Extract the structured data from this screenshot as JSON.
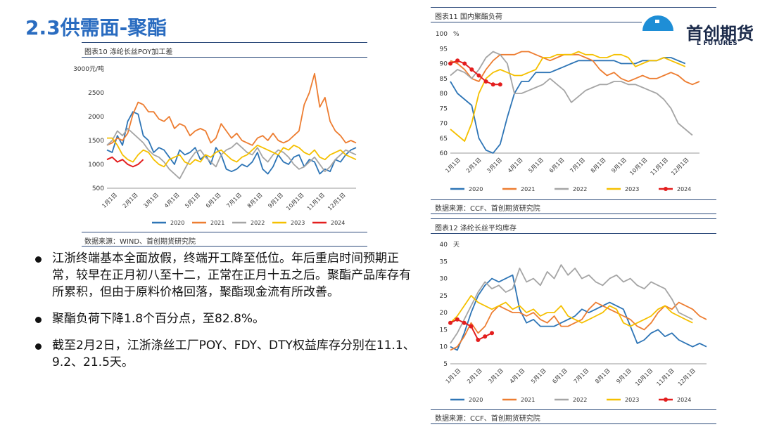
{
  "page_title": "2.3供需面-聚酯",
  "logo": {
    "text": "首创期货",
    "sub": "L FUTURES"
  },
  "bullets": [
    "江浙终端基本全面放假，终端开工降至低位。年后重启时间预期正常，较早在正月初八至十二，正常在正月十五之后。聚酯产品库存有所累积，但由于原料价格回落，聚酯现金流有所改善。",
    "聚酯负荷下降1.8个百分点，至82.8%。",
    "截至2月2日，江浙涤丝工厂POY、FDY、DTY权益库存分别在11.1、9.2、21.5天。"
  ],
  "series_colors": {
    "2020": "#2e75b6",
    "2021": "#ed7d31",
    "2022": "#a5a5a5",
    "2023": "#f5c000",
    "2024": "#e31e1e"
  },
  "chart_data": [
    {
      "id": "chart10",
      "type": "line",
      "caption": "图表10 涤纶长丝POY加工差",
      "unit": "元/吨",
      "source": "数据来源：WIND、首创期货研究院",
      "x_ticks": [
        "1月1日",
        "2月1日",
        "3月1日",
        "4月1日",
        "5月1日",
        "6月1日",
        "7月1日",
        "8月1日",
        "9月1日",
        "10月1日",
        "11月1日",
        "12月1日"
      ],
      "y_ticks": [
        500,
        1000,
        1500,
        2000,
        2500,
        3000
      ],
      "ylim": [
        500,
        3000
      ],
      "series": [
        {
          "name": "2020",
          "values": [
            1300,
            1250,
            1600,
            1400,
            1900,
            2100,
            2050,
            1600,
            1500,
            1250,
            1350,
            1300,
            1150,
            1000,
            1300,
            1200,
            1250,
            1350,
            1100,
            1200,
            1000,
            1350,
            1200,
            900,
            850,
            900,
            1000,
            950,
            1050,
            1250,
            900,
            800,
            950,
            1200,
            1050,
            1000,
            1150,
            1200,
            950,
            1100,
            1050,
            800,
            900,
            850,
            1100,
            1050,
            1200,
            1300,
            1350
          ]
        },
        {
          "name": "2021",
          "values": [
            1400,
            1450,
            1550,
            1500,
            1650,
            2050,
            2300,
            2250,
            2100,
            2100,
            1950,
            1900,
            2000,
            1750,
            1850,
            1800,
            1600,
            1700,
            1750,
            1700,
            1450,
            1550,
            1850,
            1700,
            1550,
            1650,
            1500,
            1450,
            1400,
            1550,
            1600,
            1500,
            1650,
            1500,
            1450,
            1500,
            1600,
            1700,
            2250,
            2500,
            2900,
            2200,
            2400,
            1900,
            1700,
            1600,
            1450,
            1500,
            1450
          ]
        },
        {
          "name": "2022",
          "values": [
            1400,
            1500,
            1700,
            1600,
            1750,
            1650,
            1550,
            1450,
            1300,
            1200,
            1150,
            1050,
            900,
            800,
            700,
            900,
            1100,
            1250,
            1300,
            1150,
            1050,
            950,
            1200,
            1300,
            1350,
            1450,
            1350,
            1250,
            1200,
            1350,
            1150,
            1050,
            1200,
            1300,
            1250,
            1150,
            1000,
            900,
            950,
            1050,
            1150,
            1000,
            850,
            950,
            1100,
            1200,
            1300,
            1250,
            1200
          ]
        },
        {
          "name": "2023",
          "values": [
            1550,
            1550,
            1400,
            1200,
            1100,
            1050,
            1200,
            1300,
            1250,
            1100,
            1000,
            950,
            1100,
            1150,
            1200,
            1050,
            1000,
            1100,
            1050,
            1200,
            1150,
            1250,
            1300,
            1200,
            1100,
            1050,
            1150,
            1200,
            1300,
            1400,
            1350,
            1300,
            1250,
            1200,
            1350,
            1300,
            1400,
            1350,
            1250,
            1200,
            1300,
            1150,
            1100,
            1200,
            1250,
            1300,
            1200,
            1150,
            1100
          ]
        },
        {
          "name": "2024",
          "values": [
            1100,
            1150,
            1050,
            1100,
            1000,
            950,
            1000,
            1100
          ]
        }
      ]
    },
    {
      "id": "chart11",
      "type": "line",
      "caption": "图表11 国内聚酯负荷",
      "unit": "%",
      "source": "数据来源：CCF、首创期货研究院",
      "x_ticks": [
        "1月1日",
        "2月1日",
        "3月1日",
        "4月1日",
        "5月1日",
        "6月1日",
        "7月1日",
        "8月1日",
        "9月1日",
        "10月1日",
        "11月1日",
        "12月1日"
      ],
      "y_ticks": [
        60,
        65,
        70,
        75,
        80,
        85,
        90,
        95,
        100
      ],
      "ylim": [
        60,
        100
      ],
      "series": [
        {
          "name": "2020",
          "values": [
            84,
            80,
            78,
            76,
            65,
            61,
            60,
            63,
            72,
            80,
            84,
            84,
            87,
            87,
            87,
            88,
            89,
            90,
            91,
            91,
            91,
            91,
            91,
            91,
            90,
            90,
            90,
            91,
            91,
            91,
            92,
            92,
            91,
            90
          ]
        },
        {
          "name": "2021",
          "values": [
            91,
            90,
            88,
            85,
            84,
            88,
            91,
            93,
            93,
            93,
            94,
            94,
            93,
            92,
            91,
            92,
            93,
            93,
            93,
            92,
            91,
            88,
            86,
            87,
            85,
            84,
            85,
            86,
            85,
            85,
            86,
            87,
            86,
            84,
            83,
            84
          ]
        },
        {
          "name": "2022",
          "values": [
            86,
            88,
            87,
            85,
            88,
            92,
            94,
            93,
            90,
            80,
            80,
            81,
            82,
            83,
            85,
            83,
            81,
            77,
            79,
            81,
            82,
            83,
            83,
            84,
            84,
            83,
            83,
            82,
            81,
            80,
            78,
            75,
            70,
            68,
            66
          ]
        },
        {
          "name": "2023",
          "values": [
            68,
            66,
            64,
            70,
            80,
            85,
            87,
            88,
            87,
            86,
            86,
            87,
            88,
            92,
            92,
            93,
            93,
            93,
            94,
            93,
            93,
            92,
            92,
            93,
            93,
            92,
            89,
            90,
            91,
            91,
            92,
            91,
            90,
            89
          ]
        },
        {
          "name": "2024",
          "values": [
            90,
            91,
            90,
            88,
            86,
            84,
            83,
            83
          ]
        }
      ]
    },
    {
      "id": "chart12",
      "type": "line",
      "caption": "图表12 涤纶长丝平均库存",
      "unit": "天",
      "source": "数据来源：CCF、首创期货研究院",
      "x_ticks": [
        "1月1日",
        "2月1日",
        "3月1日",
        "4月1日",
        "5月1日",
        "6月1日",
        "7月1日",
        "8月1日",
        "9月1日",
        "10月1日",
        "11月1日",
        "12月1日"
      ],
      "y_ticks": [
        5,
        10,
        15,
        20,
        25,
        30,
        35,
        40
      ],
      "ylim": [
        5,
        40
      ],
      "series": [
        {
          "name": "2020",
          "values": [
            10,
            9,
            14,
            20,
            25,
            28,
            30,
            29,
            30,
            31,
            21,
            17,
            18,
            16,
            16,
            16,
            17,
            18,
            19,
            21,
            20,
            21,
            22,
            23,
            22,
            21,
            16,
            11,
            12,
            14,
            15,
            13,
            14,
            12,
            11,
            10,
            11,
            10
          ]
        },
        {
          "name": "2021",
          "values": [
            9,
            10,
            13,
            17,
            14,
            16,
            20,
            22,
            21,
            20,
            20,
            19,
            20,
            18,
            17,
            19,
            16,
            16,
            17,
            18,
            21,
            23,
            22,
            21,
            20,
            19,
            18,
            16,
            15,
            17,
            20,
            22,
            21,
            23,
            22,
            21,
            19,
            18
          ]
        },
        {
          "name": "2022",
          "values": [
            11,
            14,
            18,
            22,
            26,
            29,
            27,
            28,
            26,
            27,
            33,
            29,
            30,
            28,
            32,
            30,
            34,
            31,
            33,
            30,
            31,
            29,
            28,
            30,
            31,
            29,
            30,
            28,
            27,
            29,
            28,
            27,
            24,
            20,
            19,
            18
          ]
        },
        {
          "name": "2023",
          "values": [
            17,
            19,
            22,
            25,
            23,
            22,
            21,
            22,
            23,
            21,
            22,
            20,
            21,
            19,
            20,
            20,
            22,
            19,
            18,
            17,
            18,
            19,
            20,
            22,
            21,
            17,
            16,
            17,
            18,
            19,
            21,
            22,
            20,
            19,
            18,
            17
          ]
        },
        {
          "name": "2024",
          "values": [
            17,
            18,
            17,
            16,
            12,
            13,
            14
          ]
        }
      ]
    }
  ]
}
